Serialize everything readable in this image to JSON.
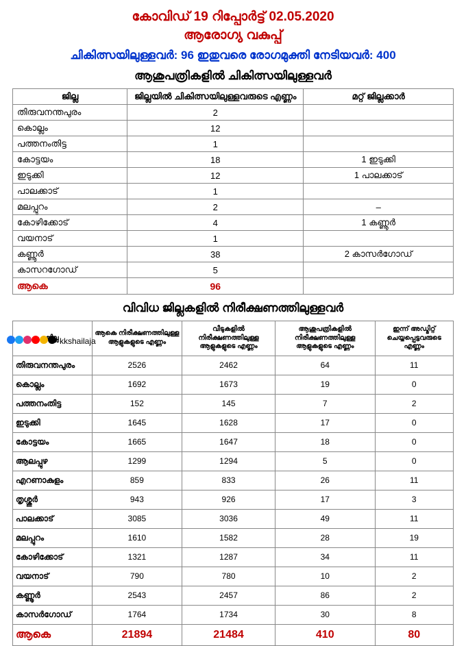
{
  "header": {
    "line1": "കോവിഡ് 19 റിപ്പോർട്ട് 02.05.2020",
    "line2": "ആരോഗ്യ വകുപ്പ്",
    "blue": "ചികിത്സയിലുള്ളവർ: 96 ഇതുവരെ രോഗമുക്തി നേടിയവർ: 400",
    "section1": "ആശുപത്രികളിൽ ചികിത്സയിലുള്ളവർ",
    "section2": "വിവിധ ജില്ലകളിൽ നിരീക്ഷണത്തിലുള്ളവർ"
  },
  "table1": {
    "headers": [
      "ജില്ല",
      "ജില്ലയിൽ ചികിത്സയിലുള്ളവരുടെ എണ്ണം",
      "മറ്റ് ജില്ലക്കാർ"
    ],
    "rows": [
      [
        "തിരുവനന്തപുരം",
        "2",
        ""
      ],
      [
        "കൊല്ലം",
        "12",
        ""
      ],
      [
        "പത്തനംതിട്ട",
        "1",
        ""
      ],
      [
        "കോട്ടയം",
        "18",
        "1 ഇടുക്കി"
      ],
      [
        "ഇടുക്കി",
        "12",
        "1 പാലക്കാട്"
      ],
      [
        "പാലക്കാട്",
        "1",
        ""
      ],
      [
        "മലപ്പുറം",
        "2",
        "–"
      ],
      [
        "കോഴിക്കോട്",
        "4",
        "1 കണ്ണൂർ"
      ],
      [
        "വയനാട്",
        "1",
        ""
      ],
      [
        "കണ്ണൂർ",
        "38",
        "2 കാസർഗോഡ്"
      ],
      [
        "കാസറഗോഡ്",
        "5",
        ""
      ]
    ],
    "total": [
      "ആകെ",
      "96",
      ""
    ]
  },
  "table2": {
    "headers": [
      "ജില്ല",
      "ആകെ നിരീക്ഷണത്തിലുള്ള ആളുകളുടെ എണ്ണം",
      "വീടുകളിൽ നിരീക്ഷണത്തിലുള്ള ആളുകളുടെ എണ്ണം",
      "ആശുപത്രികളിൽ നിരീക്ഷണത്തിലുള്ള ആളുകളുടെ എണ്ണം",
      "ഇന്ന് അഡ്മിറ്റ് ചെയ്യപ്പെട്ടവരുടെ എണ്ണം"
    ],
    "rows": [
      [
        "തിരുവനന്തപുരം",
        "2526",
        "2462",
        "64",
        "11"
      ],
      [
        "കൊല്ലം",
        "1692",
        "1673",
        "19",
        "0"
      ],
      [
        "പത്തനംതിട്ട",
        "152",
        "145",
        "7",
        "2"
      ],
      [
        "ഇടുക്കി",
        "1645",
        "1628",
        "17",
        "0"
      ],
      [
        "കോട്ടയം",
        "1665",
        "1647",
        "18",
        "0"
      ],
      [
        "ആലപ്പുഴ",
        "1299",
        "1294",
        "5",
        "0"
      ],
      [
        "എറണാകുളം",
        "859",
        "833",
        "26",
        "11"
      ],
      [
        "തൃശ്ശൂർ",
        "943",
        "926",
        "17",
        "3"
      ],
      [
        "പാലക്കാട്",
        "3085",
        "3036",
        "49",
        "11"
      ],
      [
        "മലപ്പുറം",
        "1610",
        "1582",
        "28",
        "19"
      ],
      [
        "കോഴിക്കോട്",
        "1321",
        "1287",
        "34",
        "11"
      ],
      [
        "വയനാട്",
        "790",
        "780",
        "10",
        "2"
      ],
      [
        "കണ്ണൂർ",
        "2543",
        "2457",
        "86",
        "2"
      ],
      [
        "കാസർഗോഡ്",
        "1764",
        "1734",
        "30",
        "8"
      ]
    ],
    "total": [
      "ആകെ",
      "21894",
      "21484",
      "410",
      "80"
    ]
  },
  "social": {
    "handle": "kkshailaja",
    "icons": [
      "#1877f2",
      "#1da1f2",
      "#e1306c",
      "#ff0000",
      "#f4b400",
      "#000000"
    ]
  },
  "colors": {
    "red": "#c00000",
    "blue": "#0033cc",
    "border": "#888888"
  }
}
